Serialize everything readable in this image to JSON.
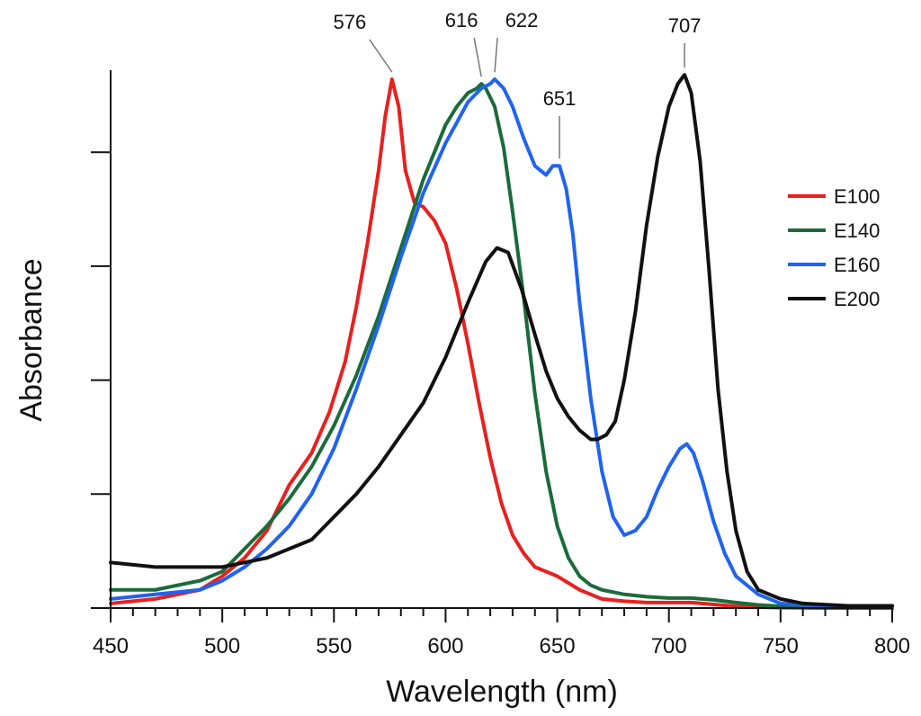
{
  "chart_data": {
    "type": "line",
    "title": "",
    "xlabel": "Wavelength (nm)",
    "ylabel": "Absorbance",
    "xlim": [
      450,
      800
    ],
    "ylim": [
      0,
      1.18
    ],
    "x_ticks_major": [
      450,
      500,
      550,
      600,
      650,
      700,
      750,
      800
    ],
    "x_tick_labels": [
      "450",
      "500",
      "550",
      "600",
      "650",
      "700",
      "750",
      "800"
    ],
    "y_ticks_major": [
      0,
      0.25,
      0.5,
      0.75,
      1.0
    ],
    "y_tick_labels_shown": false,
    "grid": false,
    "legend_position": "right",
    "series": [
      {
        "name": "E100",
        "color": "#e8201f",
        "x": [
          450,
          470,
          490,
          500,
          510,
          520,
          530,
          540,
          548,
          555,
          560,
          565,
          570,
          573,
          576,
          579,
          582,
          586,
          590,
          595,
          600,
          605,
          610,
          615,
          620,
          625,
          630,
          635,
          640,
          645,
          650,
          655,
          660,
          665,
          670,
          680,
          690,
          700,
          705,
          710,
          715,
          720,
          730,
          740,
          750,
          770,
          800
        ],
        "y": [
          0.01,
          0.02,
          0.04,
          0.07,
          0.11,
          0.17,
          0.27,
          0.34,
          0.43,
          0.54,
          0.66,
          0.8,
          0.96,
          1.08,
          1.16,
          1.1,
          0.96,
          0.89,
          0.88,
          0.85,
          0.8,
          0.7,
          0.58,
          0.45,
          0.33,
          0.23,
          0.16,
          0.12,
          0.09,
          0.08,
          0.07,
          0.055,
          0.04,
          0.03,
          0.02,
          0.015,
          0.012,
          0.012,
          0.012,
          0.012,
          0.01,
          0.008,
          0.004,
          0.002,
          0.001,
          0,
          0
        ]
      },
      {
        "name": "E140",
        "color": "#1b6b3a",
        "x": [
          450,
          470,
          490,
          500,
          510,
          520,
          530,
          540,
          550,
          560,
          570,
          580,
          590,
          600,
          605,
          610,
          614,
          616,
          618,
          622,
          626,
          630,
          635,
          640,
          645,
          650,
          655,
          660,
          665,
          670,
          680,
          690,
          700,
          705,
          710,
          715,
          720,
          730,
          740,
          750,
          770,
          800
        ],
        "y": [
          0.04,
          0.04,
          0.06,
          0.08,
          0.13,
          0.18,
          0.24,
          0.31,
          0.4,
          0.51,
          0.64,
          0.79,
          0.94,
          1.06,
          1.1,
          1.13,
          1.14,
          1.15,
          1.14,
          1.1,
          1.01,
          0.87,
          0.68,
          0.47,
          0.3,
          0.18,
          0.11,
          0.07,
          0.05,
          0.04,
          0.03,
          0.025,
          0.022,
          0.022,
          0.022,
          0.02,
          0.018,
          0.012,
          0.007,
          0.004,
          0.002,
          0
        ]
      },
      {
        "name": "E160",
        "color": "#1f63f0",
        "x": [
          450,
          470,
          490,
          500,
          510,
          520,
          530,
          540,
          550,
          560,
          570,
          580,
          590,
          600,
          610,
          616,
          620,
          622,
          626,
          630,
          635,
          640,
          645,
          648,
          651,
          654,
          657,
          660,
          665,
          670,
          675,
          680,
          685,
          690,
          695,
          700,
          705,
          708,
          711,
          715,
          720,
          725,
          730,
          740,
          750,
          770,
          800
        ],
        "y": [
          0.02,
          0.03,
          0.04,
          0.06,
          0.09,
          0.13,
          0.18,
          0.25,
          0.35,
          0.48,
          0.62,
          0.77,
          0.91,
          1.02,
          1.11,
          1.14,
          1.15,
          1.16,
          1.14,
          1.1,
          1.03,
          0.97,
          0.95,
          0.97,
          0.97,
          0.92,
          0.82,
          0.67,
          0.46,
          0.3,
          0.2,
          0.16,
          0.17,
          0.2,
          0.26,
          0.31,
          0.35,
          0.36,
          0.34,
          0.28,
          0.19,
          0.12,
          0.07,
          0.03,
          0.01,
          0.003,
          0
        ]
      },
      {
        "name": "E200",
        "color": "#111111",
        "x": [
          450,
          470,
          490,
          500,
          510,
          520,
          530,
          540,
          550,
          560,
          570,
          580,
          590,
          600,
          610,
          618,
          623,
          628,
          634,
          640,
          645,
          650,
          655,
          660,
          665,
          668,
          672,
          676,
          680,
          685,
          690,
          695,
          700,
          704,
          707,
          710,
          714,
          718,
          722,
          726,
          730,
          735,
          740,
          750,
          760,
          780,
          800
        ],
        "y": [
          0.1,
          0.09,
          0.09,
          0.09,
          0.1,
          0.11,
          0.13,
          0.15,
          0.2,
          0.25,
          0.31,
          0.38,
          0.45,
          0.55,
          0.67,
          0.76,
          0.79,
          0.78,
          0.7,
          0.6,
          0.52,
          0.46,
          0.42,
          0.39,
          0.37,
          0.37,
          0.38,
          0.41,
          0.5,
          0.65,
          0.84,
          0.99,
          1.1,
          1.15,
          1.17,
          1.13,
          0.98,
          0.74,
          0.48,
          0.3,
          0.17,
          0.08,
          0.04,
          0.02,
          0.01,
          0.005,
          0.005
        ]
      }
    ],
    "peak_annotations": [
      {
        "label": "576",
        "x": 576,
        "series": "E100"
      },
      {
        "label": "616",
        "x": 616,
        "series": "E140"
      },
      {
        "label": "622",
        "x": 622,
        "series": "E160"
      },
      {
        "label": "651",
        "x": 651,
        "series": "E160"
      },
      {
        "label": "707",
        "x": 707,
        "series": "E200"
      }
    ]
  }
}
